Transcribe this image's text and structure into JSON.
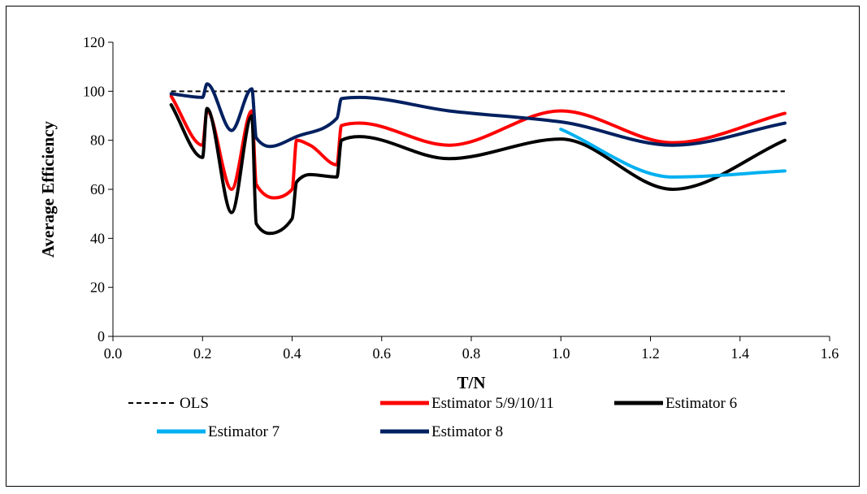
{
  "chart_data": {
    "type": "line",
    "title": "",
    "xlabel": "T/N",
    "ylabel": "Average Efficiency",
    "xlim": [
      0.0,
      1.6
    ],
    "ylim": [
      0,
      120
    ],
    "x_ticks": [
      0.0,
      0.2,
      0.4,
      0.6,
      0.8,
      1.0,
      1.2,
      1.4,
      1.6
    ],
    "x_tick_labels": [
      "0.0",
      "0.2",
      "0.4",
      "0.6",
      "0.8",
      "1.0",
      "1.2",
      "1.4",
      "1.6"
    ],
    "y_ticks": [
      0,
      20,
      40,
      60,
      80,
      100,
      120
    ],
    "y_tick_labels": [
      "0",
      "20",
      "40",
      "60",
      "80",
      "100",
      "120"
    ],
    "grid": false,
    "legend_position": "bottom",
    "series": [
      {
        "name": "OLS",
        "color": "#000000",
        "dashed": true,
        "points": [
          [
            0.13,
            100
          ],
          [
            1.5,
            100
          ]
        ]
      },
      {
        "name": "Estimator 5/9/10/11",
        "color": "#ff0000",
        "dashed": false,
        "points": [
          [
            0.13,
            98
          ],
          [
            0.2,
            78
          ],
          [
            0.21,
            92
          ],
          [
            0.265,
            60
          ],
          [
            0.31,
            92
          ],
          [
            0.32,
            62
          ],
          [
            0.36,
            56.5
          ],
          [
            0.4,
            60
          ],
          [
            0.41,
            80
          ],
          [
            0.44,
            78
          ],
          [
            0.5,
            70
          ],
          [
            0.51,
            86
          ],
          [
            0.55,
            87
          ],
          [
            0.75,
            78
          ],
          [
            1.0,
            92
          ],
          [
            1.25,
            79
          ],
          [
            1.5,
            91
          ]
        ]
      },
      {
        "name": "Estimator 6",
        "color": "#000000",
        "dashed": false,
        "points": [
          [
            0.13,
            94.5
          ],
          [
            0.2,
            73
          ],
          [
            0.21,
            93
          ],
          [
            0.265,
            50.5
          ],
          [
            0.31,
            90
          ],
          [
            0.32,
            46
          ],
          [
            0.35,
            42
          ],
          [
            0.4,
            48
          ],
          [
            0.41,
            63
          ],
          [
            0.44,
            66
          ],
          [
            0.5,
            65
          ],
          [
            0.51,
            80
          ],
          [
            0.55,
            81.5
          ],
          [
            0.75,
            72.5
          ],
          [
            1.0,
            80.5
          ],
          [
            1.25,
            60
          ],
          [
            1.5,
            80
          ]
        ]
      },
      {
        "name": "Estimator 7",
        "color": "#00b0f0",
        "dashed": false,
        "points": [
          [
            1.0,
            84.5
          ],
          [
            1.25,
            65
          ],
          [
            1.5,
            67.5
          ]
        ]
      },
      {
        "name": "Estimator 8",
        "color": "#002060",
        "dashed": false,
        "points": [
          [
            0.13,
            99
          ],
          [
            0.2,
            97.5
          ],
          [
            0.21,
            103
          ],
          [
            0.265,
            84
          ],
          [
            0.31,
            101
          ],
          [
            0.32,
            81
          ],
          [
            0.35,
            77.5
          ],
          [
            0.41,
            81.5
          ],
          [
            0.5,
            89
          ],
          [
            0.51,
            97
          ],
          [
            0.55,
            97.5
          ],
          [
            0.75,
            92
          ],
          [
            1.0,
            87.5
          ],
          [
            1.25,
            78
          ],
          [
            1.5,
            87
          ]
        ]
      }
    ]
  }
}
